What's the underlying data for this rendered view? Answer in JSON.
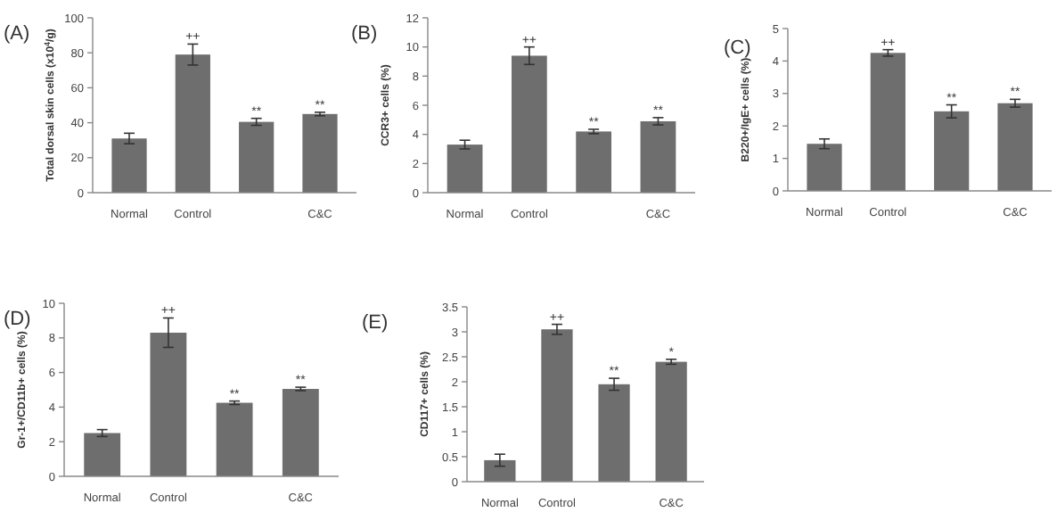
{
  "chart_data": [
    {
      "type": "bar",
      "title": "(A)",
      "ylabel": "Total dorsal skin cells (x10$^{4}$/g)",
      "categories": [
        "Normal",
        "Control",
        null,
        "C&C"
      ],
      "values": [
        31,
        79,
        40.5,
        45
      ],
      "errors": [
        3,
        6,
        2,
        1
      ],
      "color": "#6e6e6e",
      "ylim": [
        0,
        100
      ],
      "yticks": [
        0,
        20,
        40,
        60,
        80,
        100
      ],
      "grid": false,
      "annotations": [
        {
          "text": "++",
          "x": "Control",
          "y": 85
        },
        {
          "text": "**",
          "y": 42.5
        },
        {
          "text": "**",
          "x": "C&C",
          "y": 46
        }
      ]
    },
    {
      "type": "bar",
      "title": "(B)",
      "ylabel": "CCR3+ cells (%)",
      "categories": [
        "Normal",
        "Control",
        null,
        "C&C"
      ],
      "values": [
        3.3,
        9.4,
        4.2,
        4.9
      ],
      "errors": [
        0.3,
        0.6,
        0.15,
        0.25
      ],
      "color": "#6e6e6e",
      "ylim": [
        0,
        12
      ],
      "yticks": [
        0,
        2,
        4,
        6,
        8,
        10,
        12
      ],
      "grid": false,
      "annotations": [
        {
          "text": "++",
          "x": "Control",
          "y": 10
        },
        {
          "text": "**",
          "y": 4.35
        },
        {
          "text": "**",
          "x": "C&C",
          "y": 5.15
        }
      ]
    },
    {
      "type": "bar",
      "title": "(C)",
      "ylabel": "B220+/IgE+ cells (%)",
      "categories": [
        "Normal",
        "Control",
        null,
        "C&C"
      ],
      "values": [
        1.45,
        4.25,
        2.45,
        2.7
      ],
      "errors": [
        0.15,
        0.1,
        0.2,
        0.12
      ],
      "color": "#6e6e6e",
      "ylim": [
        0,
        5
      ],
      "yticks": [
        0,
        1,
        2,
        3,
        4,
        5
      ],
      "grid": false,
      "annotations": [
        {
          "text": "++",
          "x": "Control",
          "y": 4.35
        },
        {
          "text": "**",
          "y": 2.65
        },
        {
          "text": "**",
          "x": "C&C",
          "y": 2.82
        }
      ]
    },
    {
      "type": "bar",
      "title": "(D)",
      "ylabel": "Gr-1+/CD11b+ cells (%)",
      "categories": [
        "Normal",
        "Control",
        null,
        "C&C"
      ],
      "values": [
        2.5,
        8.3,
        4.25,
        5.05
      ],
      "errors": [
        0.2,
        0.85,
        0.1,
        0.1
      ],
      "color": "#6e6e6e",
      "ylim": [
        0,
        10
      ],
      "yticks": [
        0,
        2,
        4,
        6,
        8,
        10
      ],
      "grid": false,
      "annotations": [
        {
          "text": "++",
          "x": "Control",
          "y": 9.15
        },
        {
          "text": "**",
          "y": 4.35
        },
        {
          "text": "**",
          "x": "C&C",
          "y": 5.15
        }
      ]
    },
    {
      "type": "bar",
      "title": "(E)",
      "ylabel": "CD117+ cells (%)",
      "categories": [
        "Normal",
        "Control",
        null,
        "C&C"
      ],
      "values": [
        0.43,
        3.05,
        1.95,
        2.4
      ],
      "errors": [
        0.12,
        0.1,
        0.12,
        0.05
      ],
      "color": "#6e6e6e",
      "ylim": [
        0,
        3.5
      ],
      "yticks": [
        0,
        0.5,
        1,
        1.5,
        2,
        2.5,
        3,
        3.5
      ],
      "grid": false,
      "annotations": [
        {
          "text": "++",
          "x": "Control",
          "y": 3.15
        },
        {
          "text": "**",
          "y": 2.07
        },
        {
          "text": "*",
          "x": "C&C",
          "y": 2.45
        }
      ]
    }
  ]
}
